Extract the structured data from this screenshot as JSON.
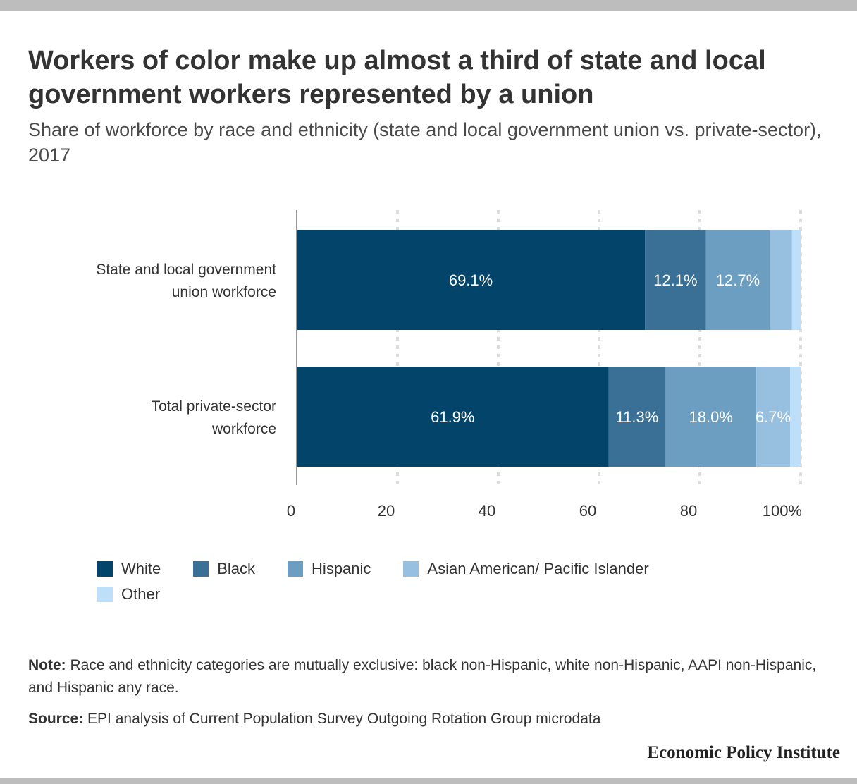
{
  "title": "Workers of color make up almost a third of state and local government workers represented by a union",
  "subtitle": "Share of workforce by race and ethnicity (state and local government union vs. private-sector), 2017",
  "chart_data": {
    "type": "bar",
    "orientation": "horizontal",
    "stacked": true,
    "categories": [
      [
        "State and local government",
        "union workforce"
      ],
      [
        "Total private-sector",
        "workforce"
      ]
    ],
    "series": [
      {
        "name": "White",
        "color": "#03456a",
        "values": [
          69.1,
          61.9
        ],
        "labels": [
          "69.1%",
          "61.9%"
        ]
      },
      {
        "name": "Black",
        "color": "#3a7096",
        "values": [
          12.1,
          11.3
        ],
        "labels": [
          "12.1%",
          "11.3%"
        ]
      },
      {
        "name": "Hispanic",
        "color": "#6b9ec1",
        "values": [
          12.7,
          18.0
        ],
        "labels": [
          "12.7%",
          "18.0%"
        ]
      },
      {
        "name": "Asian American/ Pacific Islander",
        "color": "#97c0e0",
        "values": [
          4.4,
          6.7
        ],
        "labels": [
          "",
          "6.7%"
        ]
      },
      {
        "name": "Other",
        "color": "#bedffa",
        "values": [
          1.7,
          2.1
        ],
        "labels": [
          "",
          ""
        ]
      }
    ],
    "xlim": [
      0,
      100
    ],
    "ticks": [
      "0",
      "20",
      "40",
      "60",
      "80",
      "100%"
    ],
    "tick_values": [
      0,
      20,
      40,
      60,
      80,
      100
    ],
    "grid": "vertical dotted",
    "legend": "bottom"
  },
  "footer": {
    "note_label": "Note:",
    "note_text": " Race and ethnicity categories are mutually exclusive: black non-Hispanic, white non-Hispanic, AAPI non-Hispanic, and Hispanic any race.",
    "source_label": "Source:",
    "source_text": " EPI analysis of Current Population Survey Outgoing Rotation Group microdata",
    "publisher": "Economic Policy Institute"
  }
}
